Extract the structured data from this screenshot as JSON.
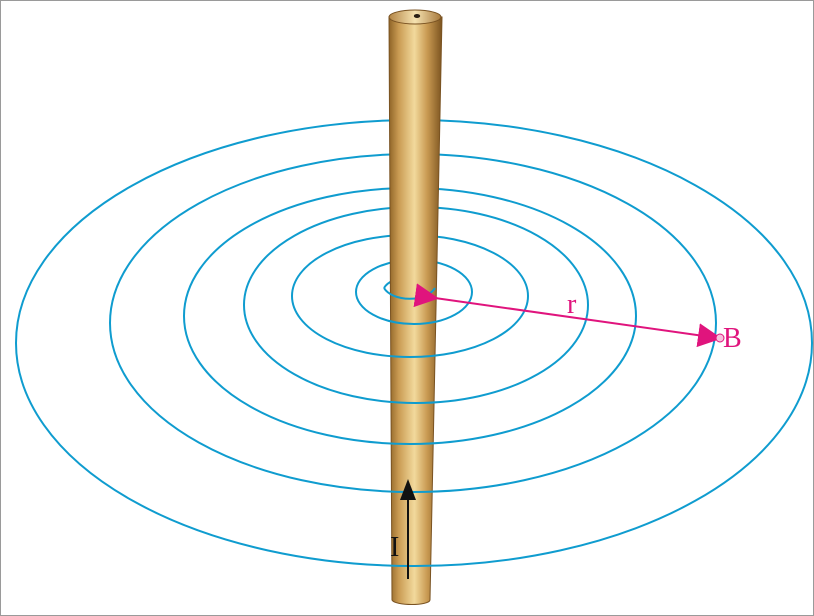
{
  "figure": {
    "field_line_color": "#0f9ccf",
    "vector_color": "#e0147d",
    "wire_color_main": "#c99a52",
    "wire_color_highlight": "#f2d99c",
    "wire_color_shadow": "#8f6427",
    "labels": {
      "radius": "r",
      "field_point": "B",
      "current": "I"
    },
    "icons": {
      "current_arrow": "up-arrow"
    }
  }
}
